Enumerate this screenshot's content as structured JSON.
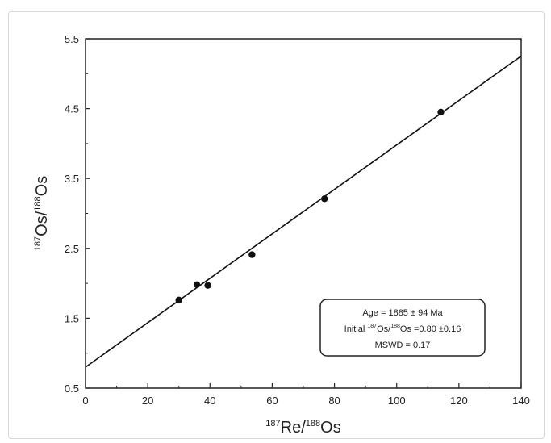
{
  "chart_data": {
    "type": "scatter",
    "xlabel": {
      "sup1": "187",
      "main1": "Re/",
      "sup2": "188",
      "main2": "Os"
    },
    "ylabel": {
      "sup1": "187",
      "main1": "Os/",
      "sup2": "188",
      "main2": "Os"
    },
    "xlim": [
      0,
      140
    ],
    "ylim": [
      0.5,
      5.5
    ],
    "x_ticks": [
      0,
      20,
      40,
      60,
      80,
      100,
      120,
      140
    ],
    "x_tick_labels": [
      "0",
      "20",
      "40",
      "60",
      "80",
      "100",
      "120",
      "140"
    ],
    "y_ticks": [
      0.5,
      1.5,
      2.5,
      3.5,
      4.5,
      5.5
    ],
    "y_tick_labels": [
      "0.5",
      "1.5",
      "2.5",
      "3.5",
      "4.5",
      "5.5"
    ],
    "points": [
      {
        "x": 30.0,
        "y": 1.76
      },
      {
        "x": 35.8,
        "y": 1.98
      },
      {
        "x": 39.3,
        "y": 1.97
      },
      {
        "x": 53.5,
        "y": 2.41
      },
      {
        "x": 76.8,
        "y": 3.21
      },
      {
        "x": 114.2,
        "y": 4.45
      }
    ],
    "fit_line": {
      "intercept": 0.8,
      "slope": 0.0318
    },
    "grid": false,
    "legend": "none",
    "annotation": {
      "line1": "Age = 1885 ± 94 Ma",
      "line2_pre": "Initial ",
      "line2_sup1": "187",
      "line2_mid": "Os/",
      "line2_sup2": "188",
      "line2_post": "Os =0.80 ±0.16",
      "line3": "MSWD = 0.17",
      "placement": "bottom-right"
    }
  },
  "colors": {
    "axis": "#222222",
    "marker": "#111111",
    "line": "#111111"
  }
}
